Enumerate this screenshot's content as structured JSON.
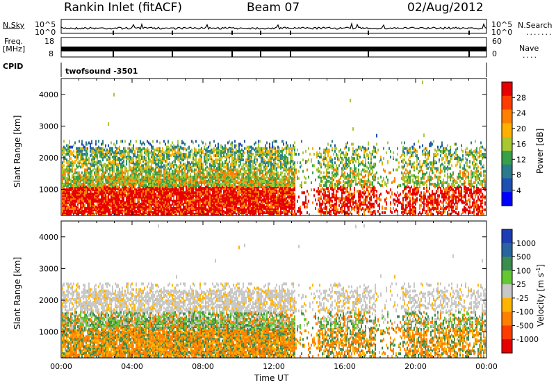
{
  "header": {
    "station": "Rankin Inlet (fitACF)",
    "beam": "Beam 07",
    "date": "02/Aug/2012"
  },
  "top_panels": {
    "nsky_label": "N.Sky",
    "nsearch_label": "N.Search",
    "noise_ticks": [
      "10^5",
      "10^0"
    ],
    "noise_right_ticks": [
      "10^5",
      "10^0"
    ],
    "freq_label": "Freq.",
    "freq_unit": "[MHz]",
    "freq_ticks": [
      "18",
      "8"
    ],
    "nave_label": "Nave",
    "nave_ticks": [
      "60",
      "0"
    ],
    "cpid_label": "CPID",
    "cpid_value": "twofsound -3501"
  },
  "chart_data": [
    {
      "type": "heatmap",
      "name": "power",
      "ylabel": "Slant Range [km]",
      "xlabel": "",
      "ylim": [
        180,
        4500
      ],
      "yticks": [
        "4000",
        "3000",
        "2000",
        "1000"
      ],
      "colorbar_label": "Power [dB]",
      "colorbar_ticks": [
        "28",
        "24",
        "20",
        "16",
        "12",
        "8",
        "4"
      ],
      "colorbar_colors": [
        "#e60000",
        "#ff3c00",
        "#ff8000",
        "#ffb000",
        "#a8c832",
        "#38a048",
        "#2a7c8c",
        "#1e50b4",
        "#0000ff"
      ]
    },
    {
      "type": "heatmap",
      "name": "velocity",
      "ylabel": "Slant Range [km]",
      "xlabel": "Time UT",
      "ylim": [
        180,
        4500
      ],
      "yticks": [
        "4000",
        "3000",
        "2000",
        "1000"
      ],
      "xticks": [
        "00:00",
        "04:00",
        "08:00",
        "12:00",
        "16:00",
        "20:00",
        "00:00"
      ],
      "colorbar_label": "Velocity [m s",
      "colorbar_label_sup": "-1",
      "colorbar_label_end": "]",
      "colorbar_ticks": [
        "1000",
        "500",
        "100",
        "25",
        "-25",
        "-100",
        "-500",
        "-1000"
      ],
      "colorbar_colors": [
        "#1e3cb4",
        "#2a64a0",
        "#3c8c50",
        "#64c832",
        "#c8c8c8",
        "#ffb400",
        "#ff8000",
        "#ff3c00",
        "#e60000"
      ]
    }
  ]
}
